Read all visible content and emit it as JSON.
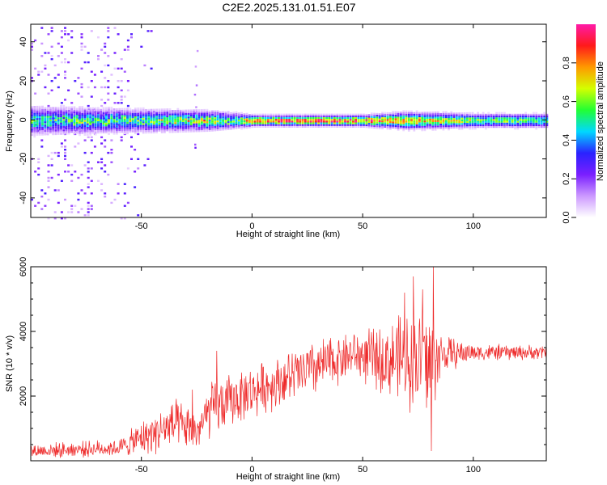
{
  "page_title": "C2E2.2025.131.01.51.E07",
  "chart_data": [
    {
      "type": "heatmap",
      "xlabel": "Height of straight line (km)",
      "ylabel": "Frequency (Hz)",
      "xlim": [
        -100,
        133
      ],
      "ylim": [
        -50,
        49
      ],
      "xticks": [
        -50,
        0,
        50,
        100
      ],
      "yticks": [
        -40,
        -20,
        0,
        20,
        40
      ],
      "colorbar": {
        "label": "Normalized spectral amplitude",
        "range": [
          0,
          1
        ],
        "ticks": [
          "0.0",
          "0.2",
          "0.4",
          "0.6",
          "0.8"
        ],
        "colormap": [
          "#ffffff",
          "#cc99ff",
          "#7a1fff",
          "#2a22ff",
          "#00d8ff",
          "#22ff33",
          "#d4ff00",
          "#ff9900",
          "#ff1a1a",
          "#ff1aa8"
        ]
      },
      "ridge": {
        "center_frequency": 0,
        "profile": [
          {
            "x": -100,
            "halfwidth": 5,
            "peak": 0.45
          },
          {
            "x": -50,
            "halfwidth": 4,
            "peak": 0.5
          },
          {
            "x": -20,
            "halfwidth": 3.5,
            "peak": 0.6
          },
          {
            "x": -10,
            "halfwidth": 3,
            "peak": 0.5
          },
          {
            "x": 0,
            "halfwidth": 2,
            "peak": 0.8
          },
          {
            "x": 50,
            "halfwidth": 2,
            "peak": 0.85
          },
          {
            "x": 70,
            "halfwidth": 3,
            "peak": 0.75
          },
          {
            "x": 100,
            "halfwidth": 2.5,
            "peak": 0.6
          },
          {
            "x": 133,
            "halfwidth": 2.5,
            "peak": 0.55
          }
        ]
      },
      "scatter_region": {
        "x": [
          -100,
          -45
        ],
        "frequency": [
          -50,
          49
        ],
        "amplitude": [
          0.05,
          0.3
        ]
      }
    },
    {
      "type": "line",
      "xlabel": "Height of straight line (km)",
      "ylabel": "SNR (10 * v/v)",
      "xlim": [
        -100,
        133
      ],
      "ylim": [
        0,
        6000
      ],
      "xticks": [
        -50,
        0,
        50,
        100
      ],
      "yticks": [
        2000,
        4000,
        6000
      ],
      "color": "#ee2a2a",
      "series": [
        {
          "envelope": [
            {
              "x": -100,
              "base": 300,
              "amp": 250
            },
            {
              "x": -60,
              "base": 400,
              "amp": 300
            },
            {
              "x": -50,
              "base": 700,
              "amp": 600
            },
            {
              "x": -35,
              "base": 1100,
              "amp": 900
            },
            {
              "x": -25,
              "base": 900,
              "amp": 700
            },
            {
              "x": -18,
              "base": 1600,
              "amp": 1000
            },
            {
              "x": -5,
              "base": 2000,
              "amp": 900
            },
            {
              "x": 10,
              "base": 2400,
              "amp": 900
            },
            {
              "x": 30,
              "base": 2900,
              "amp": 1000
            },
            {
              "x": 45,
              "base": 3300,
              "amp": 800
            },
            {
              "x": 60,
              "base": 3100,
              "amp": 1200
            },
            {
              "x": 70,
              "base": 3200,
              "amp": 1700
            },
            {
              "x": 80,
              "base": 3000,
              "amp": 2100
            },
            {
              "x": 86,
              "base": 3300,
              "amp": 700
            },
            {
              "x": 100,
              "base": 3350,
              "amp": 300
            },
            {
              "x": 133,
              "base": 3350,
              "amp": 250
            }
          ],
          "spikes": [
            {
              "x": 82,
              "y": 6000
            },
            {
              "x": 73,
              "y": 5700
            },
            {
              "x": 69,
              "y": 5200
            },
            {
              "x": 77,
              "y": 5300
            },
            {
              "x": 81,
              "y": 300
            },
            {
              "x": -27,
              "y": 2200
            },
            {
              "x": -16,
              "y": 3400
            }
          ]
        }
      ]
    }
  ]
}
